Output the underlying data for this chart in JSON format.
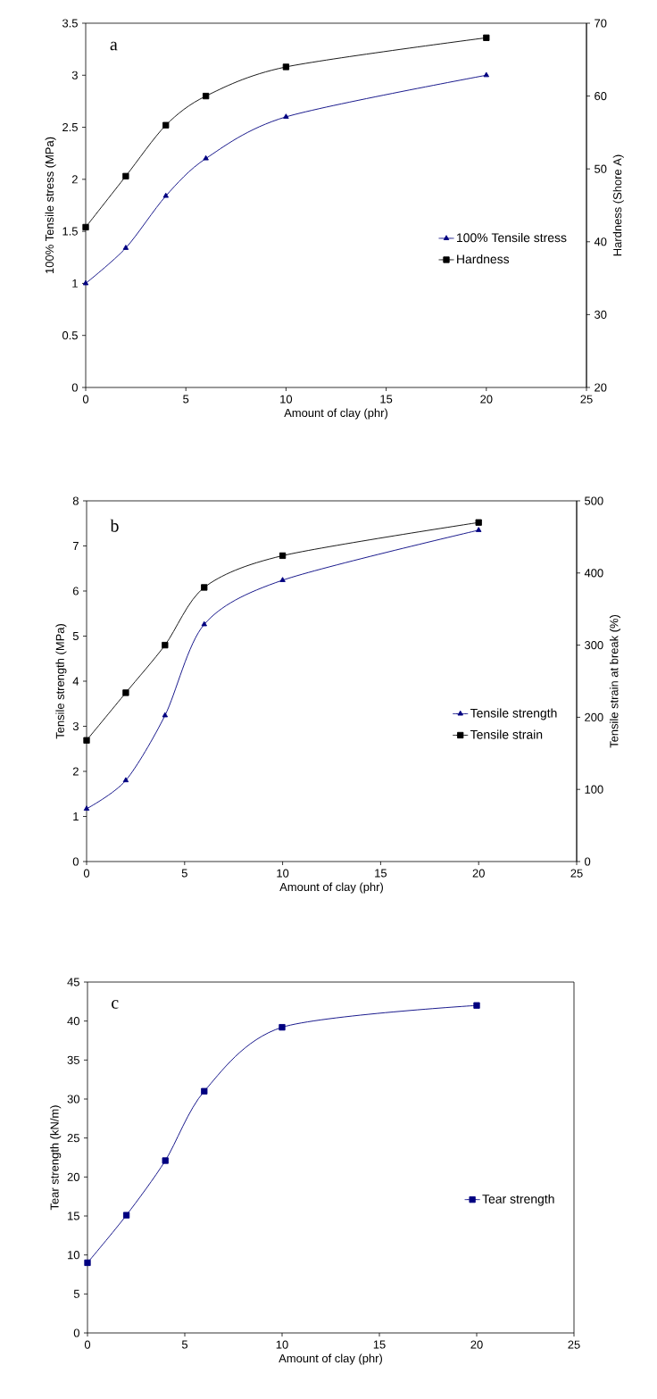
{
  "chart_data": [
    {
      "type": "line",
      "xlabel": "Amount of clay (phr)",
      "ylabel": "100% Tensile stress (MPa)",
      "y2label": "Hardness (Shore A)",
      "annotations": [
        "a"
      ],
      "x": [
        0,
        2,
        4,
        6,
        10,
        20
      ],
      "xlim": [
        0,
        25
      ],
      "xticks": [
        0,
        5,
        10,
        15,
        20,
        25
      ],
      "ylim": [
        0,
        3.5
      ],
      "yticks": [
        0,
        0.5,
        1,
        1.5,
        2,
        2.5,
        3,
        3.5
      ],
      "y2lim": [
        20,
        70
      ],
      "y2ticks": [
        20,
        30,
        40,
        50,
        60,
        70
      ],
      "legend": "right",
      "series": [
        {
          "name": "100% Tensile stress",
          "color": "#000080",
          "marker": "triangle",
          "values": [
            1.0,
            1.34,
            1.84,
            2.2,
            2.6,
            3.0
          ]
        },
        {
          "name": "Hardness",
          "color": "#000000",
          "marker": "square",
          "axis": "y2",
          "values": [
            42,
            49,
            56,
            60,
            64,
            68
          ]
        }
      ]
    },
    {
      "type": "line",
      "xlabel": "Amount of clay (phr)",
      "ylabel": "Tensile strength (MPa)",
      "y2label": "Tensile strain at break (%)",
      "annotations": [
        "b"
      ],
      "x": [
        0,
        2,
        4,
        6,
        10,
        20
      ],
      "xlim": [
        0,
        25
      ],
      "xticks": [
        0,
        5,
        10,
        15,
        20,
        25
      ],
      "ylim": [
        0,
        8
      ],
      "yticks": [
        0,
        1,
        2,
        3,
        4,
        5,
        6,
        7,
        8
      ],
      "y2lim": [
        0,
        500
      ],
      "y2ticks": [
        0,
        100,
        200,
        300,
        400,
        500
      ],
      "legend": "right",
      "series": [
        {
          "name": "Tensile strength",
          "color": "#000080",
          "marker": "triangle",
          "values": [
            1.17,
            1.8,
            3.24,
            5.26,
            6.24,
            7.35
          ]
        },
        {
          "name": "Tensile strain",
          "color": "#000000",
          "marker": "square",
          "axis": "y2",
          "values": [
            168,
            234,
            300,
            380,
            424,
            470
          ]
        }
      ]
    },
    {
      "type": "line",
      "xlabel": "Amount of clay (phr)",
      "ylabel": "Tear strength (kN/m)",
      "annotations": [
        "c"
      ],
      "x": [
        0,
        2,
        4,
        6,
        10,
        20
      ],
      "xlim": [
        0,
        25
      ],
      "xticks": [
        0,
        5,
        10,
        15,
        20,
        25
      ],
      "ylim": [
        0,
        45
      ],
      "yticks": [
        0,
        5,
        10,
        15,
        20,
        25,
        30,
        35,
        40,
        45
      ],
      "legend": "right",
      "series": [
        {
          "name": "Tear strength",
          "color": "#000080",
          "marker": "square",
          "values": [
            9.0,
            15.1,
            22.1,
            31.0,
            39.2,
            42.0
          ]
        }
      ]
    }
  ]
}
